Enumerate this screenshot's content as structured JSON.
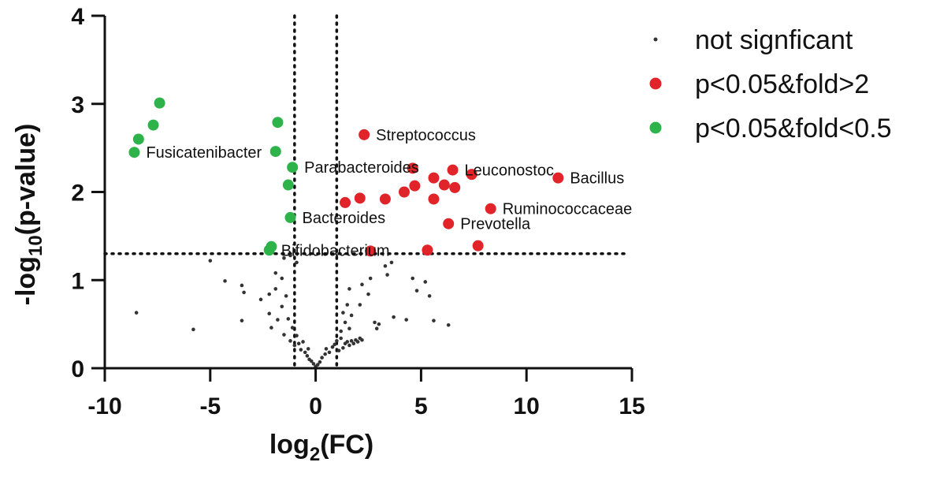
{
  "chart_data": {
    "type": "scatter",
    "title": "",
    "xlabel_main": "log",
    "xlabel_sub": "2",
    "xlabel_tail": "(FC)",
    "ylabel_main": "-log",
    "ylabel_sub": "10",
    "ylabel_tail": "(p-value)",
    "xlim": [
      -10,
      15
    ],
    "ylim": [
      0,
      4
    ],
    "xticks": [
      -10,
      -5,
      0,
      5,
      10,
      15
    ],
    "xtick_labels": [
      "-10",
      "-5",
      "0",
      "5",
      "10",
      "15"
    ],
    "yticks": [
      0,
      1,
      2,
      3,
      4
    ],
    "ytick_labels": [
      "0",
      "1",
      "2",
      "3",
      "4"
    ],
    "thresholds": {
      "x": [
        -1,
        1
      ],
      "y": 1.3
    },
    "colors": {
      "not_significant": "#333333",
      "up": "#e0242a",
      "down": "#2db34a"
    },
    "legend": [
      {
        "label": "not signficant",
        "kind": "ns"
      },
      {
        "label": "p<0.05&fold>2",
        "kind": "up"
      },
      {
        "label": "p<0.05&fold<0.5",
        "kind": "down"
      }
    ],
    "series": [
      {
        "name": "not signficant",
        "points": [
          [
            -8.5,
            0.63
          ],
          [
            -5.8,
            0.44
          ],
          [
            -5.0,
            1.22
          ],
          [
            -4.3,
            0.99
          ],
          [
            -3.5,
            0.94
          ],
          [
            -3.4,
            0.86
          ],
          [
            -3.5,
            0.54
          ],
          [
            -2.6,
            0.78
          ],
          [
            -2.2,
            0.84
          ],
          [
            -2.2,
            0.62
          ],
          [
            -2.1,
            0.46
          ],
          [
            -1.9,
            1.08
          ],
          [
            -1.9,
            0.9
          ],
          [
            -1.8,
            0.55
          ],
          [
            -1.6,
            1.02
          ],
          [
            -1.6,
            0.7
          ],
          [
            -1.5,
            0.38
          ],
          [
            -1.4,
            0.82
          ],
          [
            -1.3,
            0.56
          ],
          [
            -1.2,
            0.31
          ],
          [
            -1.1,
            0.46
          ],
          [
            -1.0,
            0.26
          ],
          [
            -0.9,
            0.37
          ],
          [
            -0.8,
            0.28
          ],
          [
            -0.7,
            0.21
          ],
          [
            -0.6,
            0.3
          ],
          [
            -0.5,
            0.18
          ],
          [
            -0.4,
            0.14
          ],
          [
            -0.35,
            0.22
          ],
          [
            -0.3,
            0.1
          ],
          [
            -0.2,
            0.08
          ],
          [
            -0.1,
            0.05
          ],
          [
            0.0,
            0.02
          ],
          [
            0.1,
            0.04
          ],
          [
            0.2,
            0.07
          ],
          [
            0.3,
            0.12
          ],
          [
            0.45,
            0.16
          ],
          [
            0.5,
            0.22
          ],
          [
            0.65,
            0.18
          ],
          [
            0.8,
            0.24
          ],
          [
            0.9,
            0.27
          ],
          [
            1.0,
            0.31
          ],
          [
            1.1,
            0.2
          ],
          [
            1.2,
            0.34
          ],
          [
            1.3,
            0.23
          ],
          [
            1.4,
            0.28
          ],
          [
            1.5,
            0.3
          ],
          [
            1.6,
            0.26
          ],
          [
            1.7,
            0.31
          ],
          [
            1.8,
            0.28
          ],
          [
            1.9,
            0.32
          ],
          [
            2.0,
            0.3
          ],
          [
            2.1,
            0.34
          ],
          [
            2.2,
            0.32
          ],
          [
            1.2,
            0.42
          ],
          [
            1.4,
            0.52
          ],
          [
            1.6,
            0.45
          ],
          [
            1.3,
            0.63
          ],
          [
            1.7,
            0.6
          ],
          [
            1.5,
            0.72
          ],
          [
            1.6,
            0.9
          ],
          [
            2.2,
            0.95
          ],
          [
            2.1,
            0.72
          ],
          [
            2.5,
            0.84
          ],
          [
            2.8,
            0.52
          ],
          [
            3.0,
            0.5
          ],
          [
            2.9,
            0.45
          ],
          [
            2.6,
            1.02
          ],
          [
            3.3,
            1.16
          ],
          [
            3.4,
            1.06
          ],
          [
            3.7,
            0.58
          ],
          [
            3.6,
            1.2
          ],
          [
            4.3,
            0.55
          ],
          [
            4.6,
            1.02
          ],
          [
            4.8,
            0.88
          ],
          [
            5.2,
            0.98
          ],
          [
            5.4,
            0.82
          ],
          [
            5.6,
            0.54
          ],
          [
            6.3,
            0.49
          ],
          [
            -1.2,
            1.28
          ],
          [
            -0.9,
            1.2
          ],
          [
            -1.5,
            1.25
          ]
        ]
      },
      {
        "name": "p<0.05&fold>2",
        "points": [
          [
            1.4,
            1.88
          ],
          [
            2.1,
            1.93
          ],
          [
            2.6,
            1.33
          ],
          [
            2.3,
            2.65
          ],
          [
            3.3,
            1.92
          ],
          [
            4.2,
            2.0
          ],
          [
            4.6,
            2.27
          ],
          [
            4.7,
            2.07
          ],
          [
            5.3,
            1.34
          ],
          [
            5.6,
            2.16
          ],
          [
            5.6,
            1.92
          ],
          [
            6.1,
            2.08
          ],
          [
            6.3,
            1.64
          ],
          [
            6.5,
            2.25
          ],
          [
            6.6,
            2.05
          ],
          [
            7.4,
            2.2
          ],
          [
            7.7,
            1.39
          ],
          [
            8.3,
            1.81
          ],
          [
            11.5,
            2.16
          ]
        ]
      },
      {
        "name": "p<0.05&fold<0.5",
        "points": [
          [
            -8.6,
            2.45
          ],
          [
            -8.4,
            2.6
          ],
          [
            -7.7,
            2.76
          ],
          [
            -7.4,
            3.01
          ],
          [
            -2.2,
            1.34
          ],
          [
            -2.1,
            1.38
          ],
          [
            -1.9,
            2.46
          ],
          [
            -1.8,
            2.79
          ],
          [
            -1.3,
            2.08
          ],
          [
            -1.2,
            1.71
          ],
          [
            -1.1,
            2.28
          ]
        ]
      }
    ],
    "annotations": [
      {
        "text": "Streptococcus",
        "x": 2.3,
        "y": 2.65
      },
      {
        "text": "Leuconostoc",
        "x": 6.5,
        "y": 2.25
      },
      {
        "text": "Bacillus",
        "x": 11.5,
        "y": 2.16
      },
      {
        "text": "Ruminococcaceae",
        "x": 8.3,
        "y": 1.81
      },
      {
        "text": "Prevotella",
        "x": 6.3,
        "y": 1.64
      },
      {
        "text": "Fusicatenibacter",
        "x": -8.6,
        "y": 2.45
      },
      {
        "text": "Parabacteroides",
        "x": -1.1,
        "y": 2.28
      },
      {
        "text": "Bacteroides",
        "x": -1.2,
        "y": 1.71
      },
      {
        "text": "Bifidobacterium",
        "x": -2.2,
        "y": 1.34
      }
    ]
  }
}
